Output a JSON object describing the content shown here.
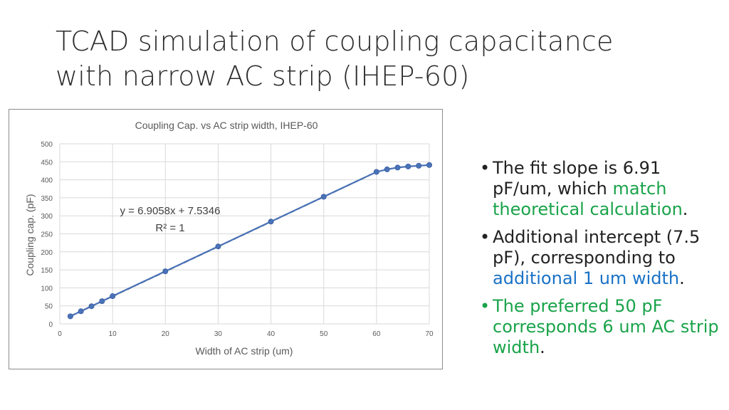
{
  "slide": {
    "title_line1": "TCAD simulation of coupling capacitance",
    "title_line2": "with narrow AC strip (IHEP-60)"
  },
  "bullets": [
    {
      "dot": "•",
      "t1": "The fit slope is 6.91 pF/um, which ",
      "t2": "match theoretical calculation",
      "t3": "."
    },
    {
      "dot": "•",
      "t1": "Additional intercept (7.5 pF), corresponding to ",
      "t2": "additional 1 um width",
      "t3": "."
    },
    {
      "dot": "•",
      "t1": "The preferred 50 pF corresponds 6 um AC strip width",
      "t3": "."
    }
  ],
  "colors": {
    "green": "#1aa34a",
    "blue": "#1a72c6",
    "series": "#4a72b8",
    "trendline": "#000000"
  },
  "chart_data": {
    "type": "scatter",
    "title": "Coupling Cap. vs AC strip width, IHEP-60",
    "xlabel": "Width of AC strip (um)",
    "ylabel": "Coupling cap. (pF)",
    "xlim": [
      0,
      70
    ],
    "ylim": [
      0,
      500
    ],
    "xticks": [
      0,
      10,
      20,
      30,
      40,
      50,
      60,
      70
    ],
    "yticks": [
      0,
      50,
      100,
      150,
      200,
      250,
      300,
      350,
      400,
      450,
      500
    ],
    "grid": true,
    "series": [
      {
        "x": [
          2,
          4,
          6,
          8,
          10,
          20,
          30,
          40,
          50,
          60,
          62,
          64,
          66,
          68,
          70
        ],
        "y": [
          21,
          35,
          49,
          63,
          77,
          146,
          215,
          284,
          353,
          422,
          429,
          434,
          437,
          439,
          441
        ],
        "line": true,
        "marker": "circle"
      }
    ],
    "trendline": {
      "style": "dashed",
      "slope": 6.9058,
      "intercept": 7.5346,
      "x_range": [
        2,
        60
      ],
      "equation": "y = 6.9058x + 7.5346",
      "r2": "R² = 1"
    }
  }
}
